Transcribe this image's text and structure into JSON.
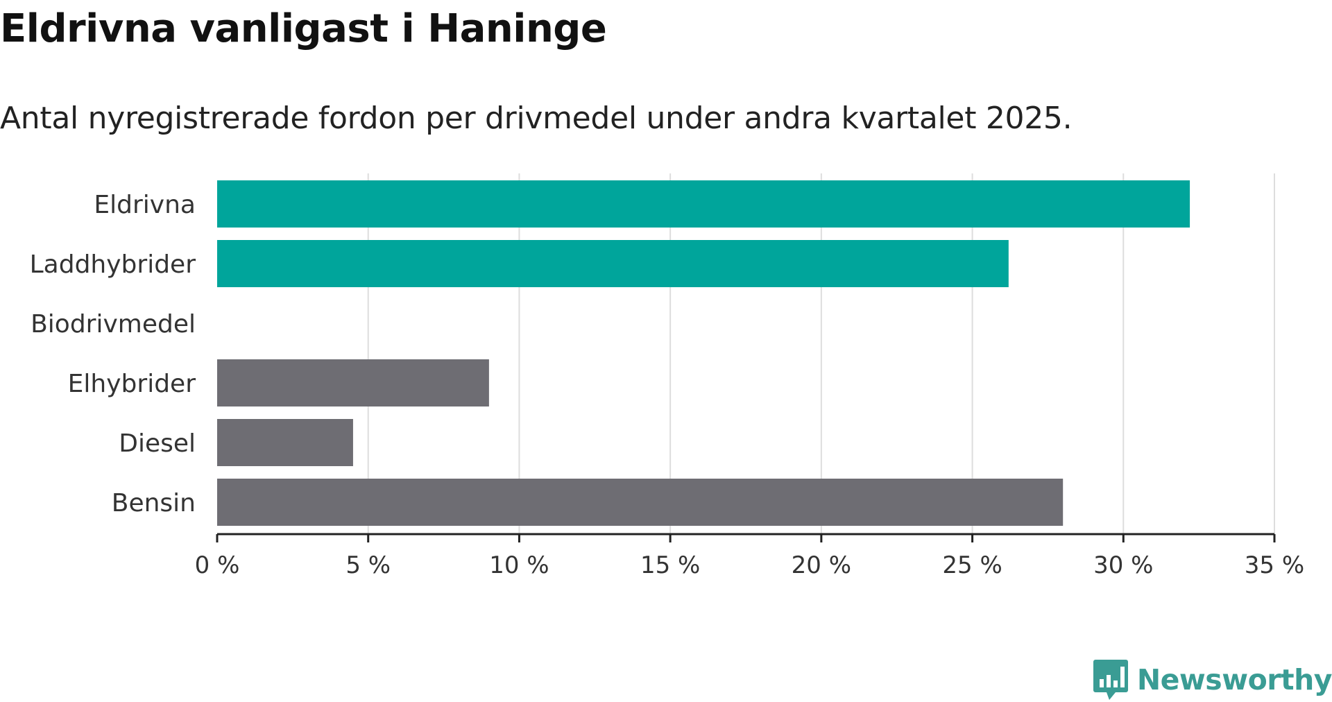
{
  "title": "Eldrivna vanligast i Haninge",
  "subtitle": "Antal nyregistrerade fordon per drivmedel under andra kvartalet 2025.",
  "brand": {
    "name": "Newsworthy",
    "icon": "newsworthy-logo-icon",
    "color": "#3a9c94"
  },
  "chart_data": {
    "type": "bar",
    "orientation": "horizontal",
    "categories": [
      "Eldrivna",
      "Laddhybrider",
      "Biodrivmedel",
      "Elhybrider",
      "Diesel",
      "Bensin"
    ],
    "values": [
      32.2,
      26.2,
      0,
      9.0,
      4.5,
      28.0
    ],
    "colors": [
      "#00a59b",
      "#00a59b",
      "#00a59b",
      "#6e6d73",
      "#6e6d73",
      "#6e6d73"
    ],
    "xlim": [
      0,
      35
    ],
    "xticks": [
      0,
      5,
      10,
      15,
      20,
      25,
      30,
      35
    ],
    "xtick_labels": [
      "0 %",
      "5 %",
      "10 %",
      "15 %",
      "20 %",
      "25 %",
      "30 %",
      "35 %"
    ],
    "grid": true
  }
}
